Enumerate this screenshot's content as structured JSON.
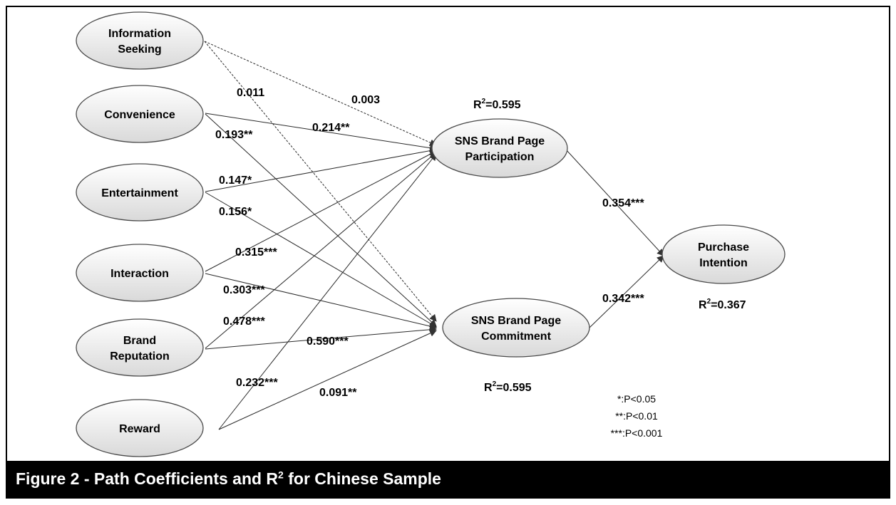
{
  "figure": {
    "caption_prefix": "Figure 2 - Path Coefficients and R",
    "caption_sup": "2",
    "caption_suffix": " for Chinese Sample"
  },
  "nodes": [
    {
      "id": "information-seeking",
      "lines": [
        "Information",
        "Seeking"
      ]
    },
    {
      "id": "convenience",
      "lines": [
        "Convenience"
      ]
    },
    {
      "id": "entertainment",
      "lines": [
        "Entertainment"
      ]
    },
    {
      "id": "interaction",
      "lines": [
        "Interaction"
      ]
    },
    {
      "id": "brand-reputation",
      "lines": [
        "Brand",
        "Reputation"
      ]
    },
    {
      "id": "reward",
      "lines": [
        "Reward"
      ]
    },
    {
      "id": "participation",
      "lines": [
        "SNS Brand Page",
        "Participation"
      ]
    },
    {
      "id": "commitment",
      "lines": [
        "SNS Brand Page",
        "Commitment"
      ]
    },
    {
      "id": "purchase-intention",
      "lines": [
        "Purchase",
        "Intention"
      ]
    }
  ],
  "paths": [
    {
      "from": "information-seeking",
      "to": "participation",
      "coefficient": "0.003",
      "significant": false
    },
    {
      "from": "information-seeking",
      "to": "commitment",
      "coefficient": "0.011",
      "significant": false
    },
    {
      "from": "convenience",
      "to": "participation",
      "coefficient": "0.214**",
      "significant": true
    },
    {
      "from": "convenience",
      "to": "commitment",
      "coefficient": "0.193**",
      "significant": true
    },
    {
      "from": "entertainment",
      "to": "participation",
      "coefficient": "0.147*",
      "significant": true
    },
    {
      "from": "entertainment",
      "to": "commitment",
      "coefficient": "0.156*",
      "significant": true
    },
    {
      "from": "interaction",
      "to": "participation",
      "coefficient": "0.315***",
      "significant": true
    },
    {
      "from": "interaction",
      "to": "commitment",
      "coefficient": "0.303***",
      "significant": true
    },
    {
      "from": "brand-reputation",
      "to": "participation",
      "coefficient": "0.478***",
      "significant": true
    },
    {
      "from": "brand-reputation",
      "to": "commitment",
      "coefficient": "0.590***",
      "significant": true
    },
    {
      "from": "reward",
      "to": "participation",
      "coefficient": "0.232***",
      "significant": true
    },
    {
      "from": "reward",
      "to": "commitment",
      "coefficient": "0.091**",
      "significant": true
    },
    {
      "from": "participation",
      "to": "purchase-intention",
      "coefficient": "0.354***",
      "significant": true
    },
    {
      "from": "commitment",
      "to": "purchase-intention",
      "coefficient": "0.342***",
      "significant": true
    }
  ],
  "r_squared": [
    {
      "node": "participation",
      "prefix": "R",
      "sup": "2",
      "value": "=0.595"
    },
    {
      "node": "commitment",
      "prefix": "R",
      "sup": "2",
      "value": "=0.595"
    },
    {
      "node": "purchase-intention",
      "prefix": "R",
      "sup": "2",
      "value": "=0.367"
    }
  ],
  "legend": [
    "*:P<0.05",
    "**:P<0.01",
    "***:P<0.001"
  ],
  "colors": {
    "caption_background": "#000000",
    "caption_text": "#ffffff",
    "node_fill_light": "#ffffff",
    "node_fill_dark": "#d9d9d9",
    "line": "#2a2a2a"
  }
}
